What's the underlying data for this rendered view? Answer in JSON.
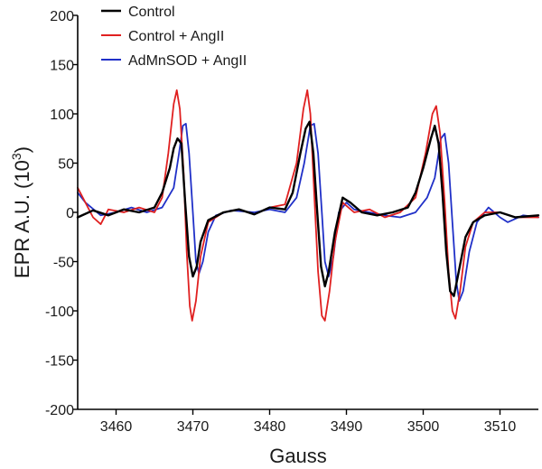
{
  "chart_data": {
    "type": "line",
    "xlabel": "Gauss",
    "ylabel_main": "EPR A.U. (10",
    "ylabel_sup": "3",
    "ylabel_close": ")",
    "xlim": [
      3455,
      3515
    ],
    "ylim": [
      -200,
      200
    ],
    "x_ticks": [
      3460,
      3470,
      3480,
      3490,
      3500,
      3510
    ],
    "y_ticks": [
      -200,
      -150,
      -100,
      -50,
      0,
      50,
      100,
      150,
      200
    ],
    "x_tick_labels": [
      "3460",
      "3470",
      "3480",
      "3490",
      "3500",
      "3510"
    ],
    "y_tick_labels": [
      "-200",
      "-150",
      "-100",
      "-50",
      "0",
      "50",
      "100",
      "150",
      "200"
    ],
    "grid": false,
    "legend_position": "top-left",
    "series": [
      {
        "name": "Control",
        "color": "#000000",
        "points": [
          [
            3455,
            -5
          ],
          [
            3457,
            2
          ],
          [
            3459,
            -3
          ],
          [
            3461,
            3
          ],
          [
            3463,
            0
          ],
          [
            3465,
            5
          ],
          [
            3466,
            20
          ],
          [
            3467,
            45
          ],
          [
            3467.5,
            65
          ],
          [
            3468,
            75
          ],
          [
            3468.5,
            70
          ],
          [
            3469,
            10
          ],
          [
            3469.5,
            -45
          ],
          [
            3470,
            -65
          ],
          [
            3470.5,
            -55
          ],
          [
            3471,
            -30
          ],
          [
            3472,
            -8
          ],
          [
            3474,
            0
          ],
          [
            3476,
            3
          ],
          [
            3478,
            -2
          ],
          [
            3480,
            5
          ],
          [
            3482,
            3
          ],
          [
            3483,
            20
          ],
          [
            3484,
            60
          ],
          [
            3484.7,
            85
          ],
          [
            3485.2,
            92
          ],
          [
            3485.7,
            60
          ],
          [
            3486.2,
            0
          ],
          [
            3486.7,
            -55
          ],
          [
            3487.2,
            -75
          ],
          [
            3487.7,
            -60
          ],
          [
            3488.5,
            -20
          ],
          [
            3489.5,
            15
          ],
          [
            3490.5,
            10
          ],
          [
            3492,
            0
          ],
          [
            3494,
            -3
          ],
          [
            3496,
            0
          ],
          [
            3498,
            5
          ],
          [
            3499,
            20
          ],
          [
            3500,
            45
          ],
          [
            3501,
            75
          ],
          [
            3501.5,
            88
          ],
          [
            3502,
            70
          ],
          [
            3502.5,
            20
          ],
          [
            3503,
            -40
          ],
          [
            3503.5,
            -80
          ],
          [
            3504,
            -85
          ],
          [
            3504.5,
            -65
          ],
          [
            3505.5,
            -25
          ],
          [
            3506.5,
            -10
          ],
          [
            3508,
            -3
          ],
          [
            3510,
            0
          ],
          [
            3512,
            -5
          ],
          [
            3515,
            -3
          ]
        ]
      },
      {
        "name": "Control + AngII",
        "color": "#e02020",
        "points": [
          [
            3455,
            25
          ],
          [
            3456,
            10
          ],
          [
            3457,
            -5
          ],
          [
            3458,
            -12
          ],
          [
            3459,
            3
          ],
          [
            3461,
            0
          ],
          [
            3463,
            5
          ],
          [
            3465,
            0
          ],
          [
            3466,
            15
          ],
          [
            3466.8,
            60
          ],
          [
            3467.5,
            110
          ],
          [
            3467.9,
            124
          ],
          [
            3468.3,
            105
          ],
          [
            3468.8,
            40
          ],
          [
            3469.2,
            -40
          ],
          [
            3469.6,
            -95
          ],
          [
            3469.9,
            -110
          ],
          [
            3470.4,
            -90
          ],
          [
            3471,
            -45
          ],
          [
            3472,
            -10
          ],
          [
            3474,
            0
          ],
          [
            3476,
            3
          ],
          [
            3478,
            -2
          ],
          [
            3480,
            5
          ],
          [
            3482,
            8
          ],
          [
            3483.5,
            50
          ],
          [
            3484.4,
            105
          ],
          [
            3484.9,
            124
          ],
          [
            3485.3,
            100
          ],
          [
            3485.8,
            20
          ],
          [
            3486.3,
            -60
          ],
          [
            3486.8,
            -105
          ],
          [
            3487.2,
            -110
          ],
          [
            3487.8,
            -80
          ],
          [
            3488.5,
            -30
          ],
          [
            3489.5,
            10
          ],
          [
            3491,
            0
          ],
          [
            3493,
            3
          ],
          [
            3495,
            -5
          ],
          [
            3497,
            0
          ],
          [
            3499,
            15
          ],
          [
            3500.3,
            60
          ],
          [
            3501.2,
            100
          ],
          [
            3501.7,
            108
          ],
          [
            3502.2,
            80
          ],
          [
            3502.8,
            10
          ],
          [
            3503.3,
            -60
          ],
          [
            3503.8,
            -100
          ],
          [
            3504.2,
            -108
          ],
          [
            3504.8,
            -80
          ],
          [
            3505.5,
            -35
          ],
          [
            3506.5,
            -10
          ],
          [
            3508,
            0
          ],
          [
            3510,
            0
          ],
          [
            3512,
            -5
          ],
          [
            3515,
            -5
          ]
        ]
      },
      {
        "name": "AdMnSOD + AngII",
        "color": "#2030c8",
        "points": [
          [
            3455,
            20
          ],
          [
            3456,
            10
          ],
          [
            3458,
            -3
          ],
          [
            3460,
            0
          ],
          [
            3462,
            5
          ],
          [
            3464,
            0
          ],
          [
            3466,
            5
          ],
          [
            3467.5,
            25
          ],
          [
            3468.2,
            60
          ],
          [
            3468.7,
            88
          ],
          [
            3469.1,
            90
          ],
          [
            3469.5,
            60
          ],
          [
            3470,
            0
          ],
          [
            3470.4,
            -50
          ],
          [
            3470.8,
            -62
          ],
          [
            3471.3,
            -50
          ],
          [
            3472,
            -20
          ],
          [
            3473,
            -3
          ],
          [
            3475,
            2
          ],
          [
            3478,
            0
          ],
          [
            3480,
            3
          ],
          [
            3482,
            0
          ],
          [
            3483.5,
            15
          ],
          [
            3484.5,
            50
          ],
          [
            3485.3,
            88
          ],
          [
            3485.8,
            90
          ],
          [
            3486.3,
            60
          ],
          [
            3486.8,
            0
          ],
          [
            3487.2,
            -50
          ],
          [
            3487.7,
            -65
          ],
          [
            3488.3,
            -45
          ],
          [
            3489,
            0
          ],
          [
            3490,
            10
          ],
          [
            3491,
            3
          ],
          [
            3493,
            0
          ],
          [
            3495,
            -3
          ],
          [
            3497,
            -5
          ],
          [
            3499,
            0
          ],
          [
            3500.5,
            15
          ],
          [
            3501.5,
            35
          ],
          [
            3502.3,
            75
          ],
          [
            3502.8,
            80
          ],
          [
            3503.3,
            50
          ],
          [
            3503.8,
            -10
          ],
          [
            3504.3,
            -70
          ],
          [
            3504.7,
            -90
          ],
          [
            3505.2,
            -80
          ],
          [
            3506,
            -40
          ],
          [
            3507,
            -10
          ],
          [
            3508.5,
            5
          ],
          [
            3510,
            -5
          ],
          [
            3511,
            -10
          ],
          [
            3513,
            -3
          ],
          [
            3515,
            -5
          ]
        ]
      }
    ]
  }
}
